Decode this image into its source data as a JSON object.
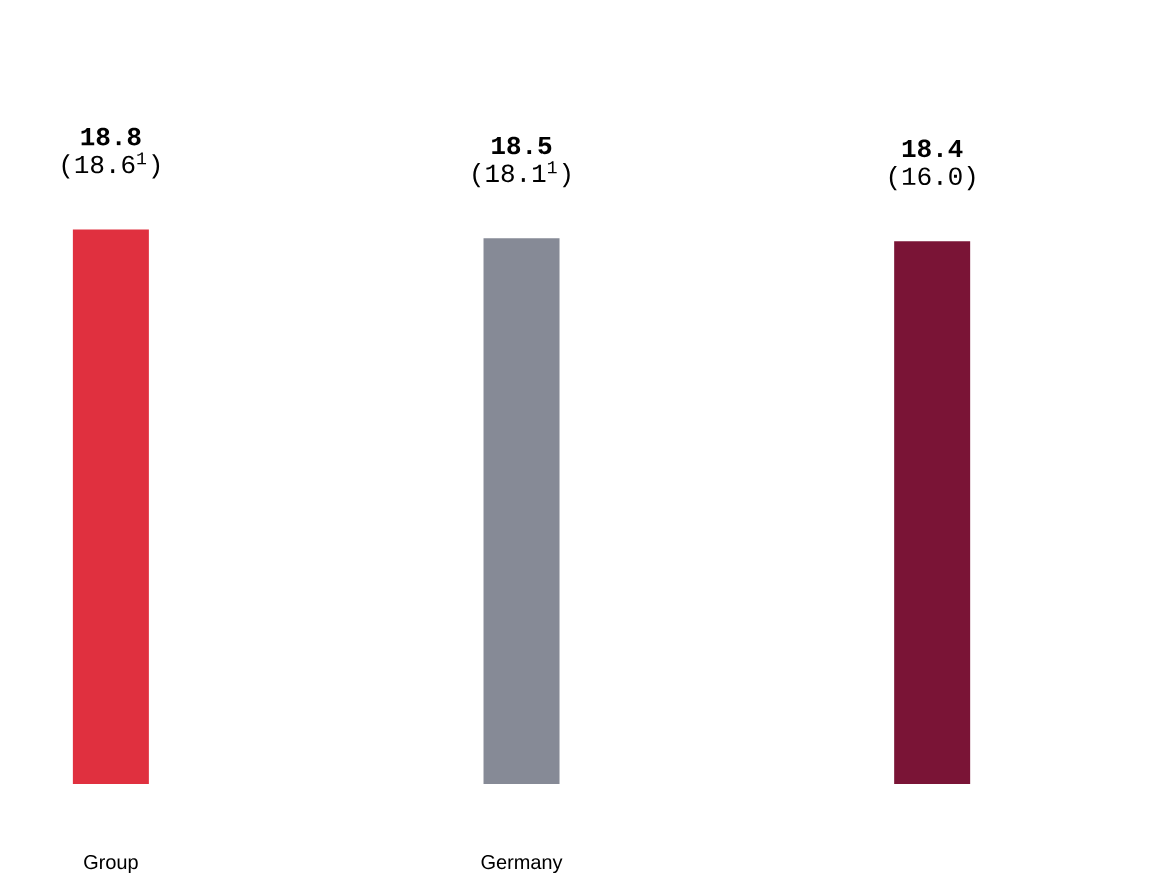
{
  "chart_data": {
    "type": "bar",
    "categories": [
      "Group",
      "Germany",
      null
    ],
    "values": [
      18.8,
      18.5,
      18.4
    ],
    "colors": [
      "#e0303f",
      "#868a96",
      "#7a1436"
    ],
    "value_labels": [
      "18.8",
      "18.5",
      "18.4"
    ],
    "annotations": [
      "(18.6$^{1}$)",
      "(18.1$^{1}$)",
      "(16.0)"
    ]
  }
}
